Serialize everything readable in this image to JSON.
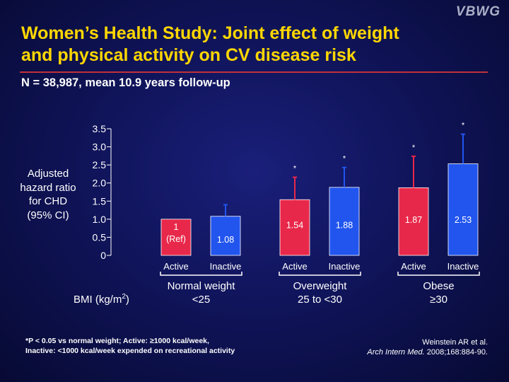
{
  "logo": "VBWG",
  "title_line1": "Women’s Health Study: Joint effect of weight",
  "title_line2": "and physical activity on CV disease risk",
  "subtitle": "N = 38,987, mean 10.9 years follow-up",
  "ylabel_lines": [
    "Adjusted",
    "hazard ratio",
    "for CHD",
    "(95% CI)"
  ],
  "bmi_label_prefix": "BMI (kg/m",
  "bmi_label_sup": "2",
  "bmi_label_suffix": ")",
  "footnote_line1": "*P < 0.05 vs normal weight; Active: ≥1000 kcal/week,",
  "footnote_line2": "Inactive: <1000 kcal/week expended on recreational activity",
  "citation_line1": "Weinstein AR et al.",
  "citation_journal": "Arch Intern Med.",
  "citation_rest": " 2008;168:884-90.",
  "colors": {
    "active": "#e8284a",
    "inactive": "#2255ee",
    "title": "#ffd700",
    "rule": "#c0303a"
  },
  "chart_data": {
    "type": "bar",
    "ylabel": "Adjusted hazard ratio for CHD (95% CI)",
    "ylim": [
      0,
      3.5
    ],
    "yticks": [
      "0",
      "0.5",
      "1.0",
      "1.5",
      "2.0",
      "2.5",
      "3.0",
      "3.5"
    ],
    "ytick_values": [
      0,
      0.5,
      1.0,
      1.5,
      2.0,
      2.5,
      3.0,
      3.5
    ],
    "groups": [
      {
        "line1": "Normal weight",
        "line2": "<25"
      },
      {
        "line1": "Overweight",
        "line2": "25 to <30"
      },
      {
        "line1": "Obese",
        "line2": "≥30"
      }
    ],
    "bars": [
      {
        "group": 0,
        "category": "Active",
        "value": 1,
        "label_lines": [
          "1",
          "(Ref)"
        ],
        "ci_high": null,
        "significant": false,
        "color": "#e8284a"
      },
      {
        "group": 0,
        "category": "Inactive",
        "value": 1.08,
        "label_lines": [
          "1.08"
        ],
        "ci_high": 1.4,
        "significant": false,
        "color": "#2255ee"
      },
      {
        "group": 1,
        "category": "Active",
        "value": 1.54,
        "label_lines": [
          "1.54"
        ],
        "ci_high": 2.16,
        "significant": true,
        "color": "#e8284a"
      },
      {
        "group": 1,
        "category": "Inactive",
        "value": 1.88,
        "label_lines": [
          "1.88"
        ],
        "ci_high": 2.43,
        "significant": true,
        "color": "#2255ee"
      },
      {
        "group": 2,
        "category": "Active",
        "value": 1.87,
        "label_lines": [
          "1.87"
        ],
        "ci_high": 2.74,
        "significant": true,
        "color": "#e8284a"
      },
      {
        "group": 2,
        "category": "Inactive",
        "value": 2.53,
        "label_lines": [
          "2.53"
        ],
        "ci_high": 3.35,
        "significant": true,
        "color": "#2255ee"
      }
    ],
    "significance_marker": "*"
  }
}
